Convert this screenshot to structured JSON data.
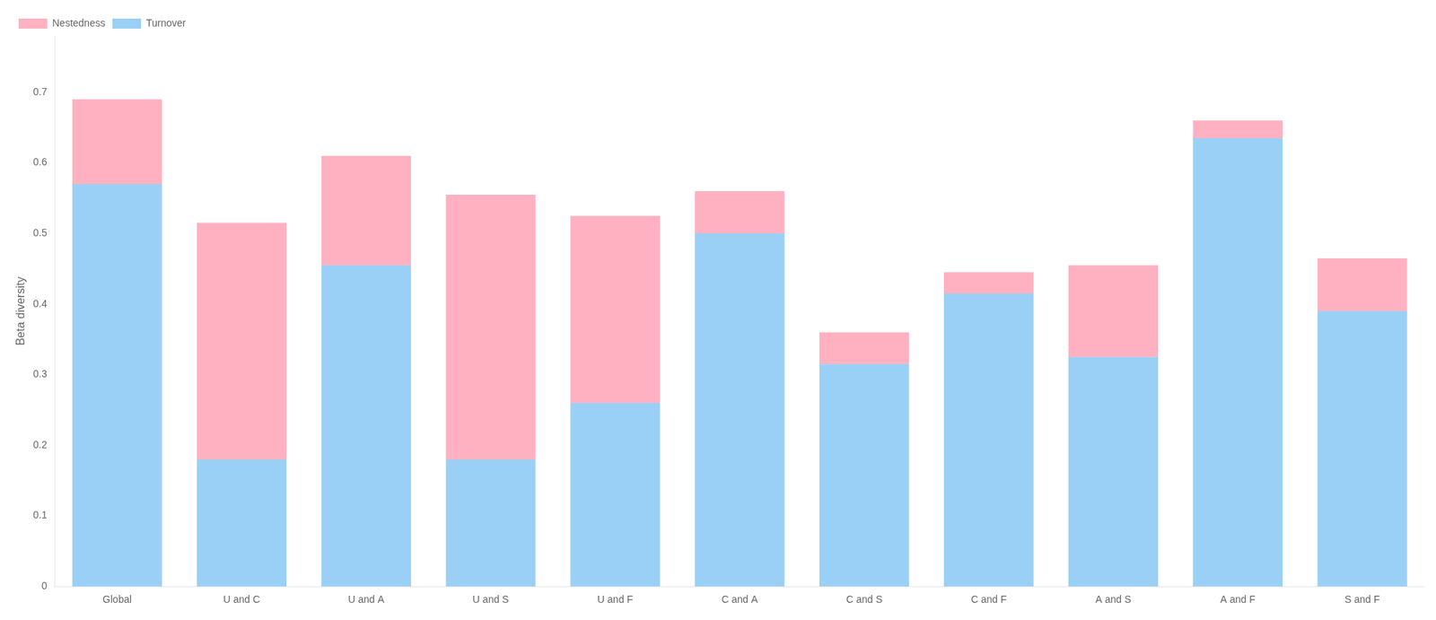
{
  "chart_data": {
    "type": "bar",
    "stacked": true,
    "categories": [
      "Global",
      "U and C",
      "U and A",
      "U and S",
      "U and F",
      "C and A",
      "C and S",
      "C and F",
      "A and S",
      "A and F",
      "S and F"
    ],
    "series": [
      {
        "name": "Turnover",
        "values": [
          0.57,
          0.18,
          0.455,
          0.18,
          0.26,
          0.5,
          0.315,
          0.415,
          0.325,
          0.635,
          0.39
        ]
      },
      {
        "name": "Nestedness",
        "values": [
          0.12,
          0.335,
          0.155,
          0.375,
          0.265,
          0.06,
          0.045,
          0.03,
          0.13,
          0.025,
          0.075
        ]
      }
    ],
    "ylabel": "Beta diversity",
    "ylim": [
      0,
      0.78
    ],
    "yticks": [
      0,
      0.1,
      0.2,
      0.3,
      0.4,
      0.5,
      0.6,
      0.7
    ],
    "grid": false,
    "legend": "upper left"
  }
}
